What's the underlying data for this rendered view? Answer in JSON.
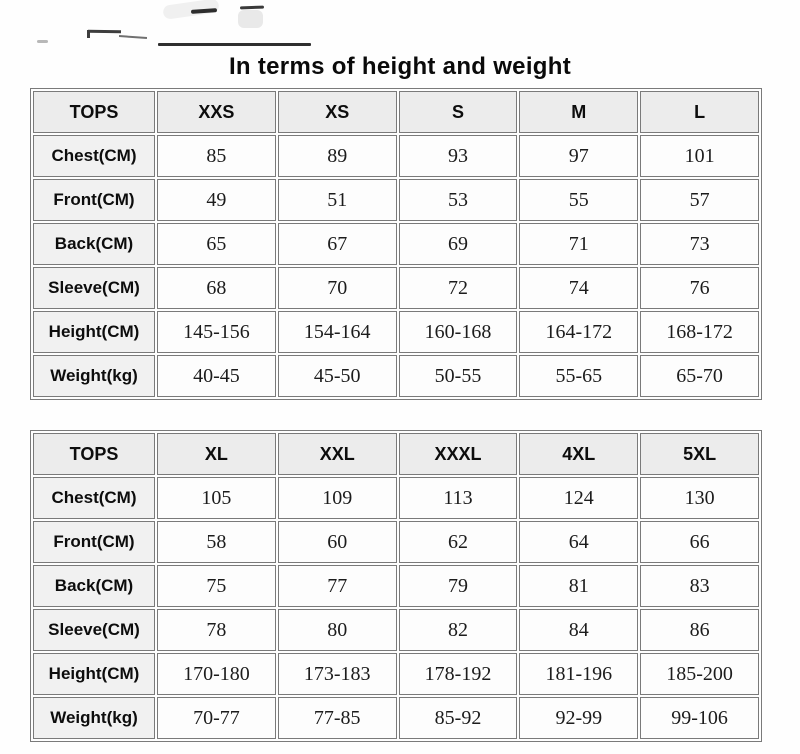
{
  "title": "In terms of height and weight",
  "chart_data": [
    {
      "type": "table",
      "title": "In terms of height and weight",
      "columns": [
        "TOPS",
        "XXS",
        "XS",
        "S",
        "M",
        "L"
      ],
      "rows": [
        {
          "label": "Chest(CM)",
          "values": [
            "85",
            "89",
            "93",
            "97",
            "101"
          ]
        },
        {
          "label": "Front(CM)",
          "values": [
            "49",
            "51",
            "53",
            "55",
            "57"
          ]
        },
        {
          "label": "Back(CM)",
          "values": [
            "65",
            "67",
            "69",
            "71",
            "73"
          ]
        },
        {
          "label": "Sleeve(CM)",
          "values": [
            "68",
            "70",
            "72",
            "74",
            "76"
          ]
        },
        {
          "label": "Height(CM)",
          "values": [
            "145-156",
            "154-164",
            "160-168",
            "164-172",
            "168-172"
          ]
        },
        {
          "label": "Weight(kg)",
          "values": [
            "40-45",
            "45-50",
            "50-55",
            "55-65",
            "65-70"
          ]
        }
      ]
    },
    {
      "type": "table",
      "columns": [
        "TOPS",
        "XL",
        "XXL",
        "XXXL",
        "4XL",
        "5XL"
      ],
      "rows": [
        {
          "label": "Chest(CM)",
          "values": [
            "105",
            "109",
            "113",
            "124",
            "130"
          ]
        },
        {
          "label": "Front(CM)",
          "values": [
            "58",
            "60",
            "62",
            "64",
            "66"
          ]
        },
        {
          "label": "Back(CM)",
          "values": [
            "75",
            "77",
            "79",
            "81",
            "83"
          ]
        },
        {
          "label": "Sleeve(CM)",
          "values": [
            "78",
            "80",
            "82",
            "84",
            "86"
          ]
        },
        {
          "label": "Height(CM)",
          "values": [
            "170-180",
            "173-183",
            "178-192",
            "181-196",
            "185-200"
          ]
        },
        {
          "label": "Weight(kg)",
          "values": [
            "70-77",
            "77-85",
            "85-92",
            "92-99",
            "99-106"
          ]
        }
      ]
    }
  ],
  "colors": {
    "border": "#7a7a7a",
    "header_bg": "#ececec",
    "label_bg": "#f1f1f1",
    "cell_bg": "#fdfdfd",
    "text": "#0d0d0d"
  }
}
